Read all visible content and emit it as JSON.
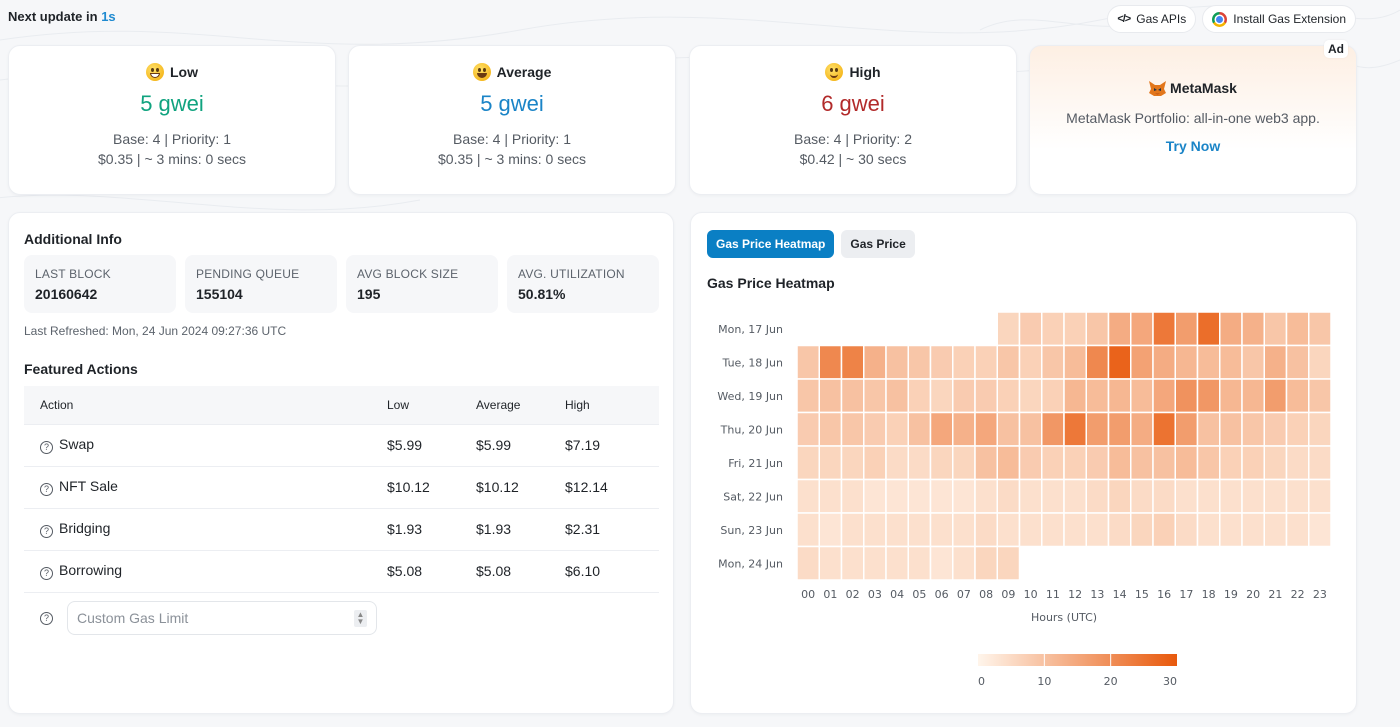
{
  "status": {
    "prefix": "Next update in",
    "countdown": "1s"
  },
  "top_actions": {
    "gas_apis": "Gas APIs",
    "install_extension": "Install Gas Extension"
  },
  "gas_cards": [
    {
      "label": "Low",
      "gwei": "5 gwei",
      "base_priority": "Base: 4 | Priority: 1",
      "cost_time": "$0.35 | ~ 3 mins: 0 secs",
      "color": "#10a37f",
      "icon": "grinning-face-icon"
    },
    {
      "label": "Average",
      "gwei": "5 gwei",
      "base_priority": "Base: 4 | Priority: 1",
      "cost_time": "$0.35 | ~ 3 mins: 0 secs",
      "color": "#1a84c7",
      "icon": "smiling-face-open-mouth-icon"
    },
    {
      "label": "High",
      "gwei": "6 gwei",
      "base_priority": "Base: 4 | Priority: 2",
      "cost_time": "$0.42 | ~ 30 secs",
      "color": "#b22a2a",
      "icon": "slightly-smiling-face-icon"
    }
  ],
  "ad": {
    "badge": "Ad",
    "brand": "MetaMask",
    "description": "MetaMask Portfolio: all-in-one web3 app.",
    "cta": "Try Now"
  },
  "additional_info": {
    "title": "Additional Info",
    "stats": [
      {
        "label": "LAST BLOCK",
        "value": "20160642"
      },
      {
        "label": "PENDING QUEUE",
        "value": "155104"
      },
      {
        "label": "AVG BLOCK SIZE",
        "value": "195"
      },
      {
        "label": "AVG. UTILIZATION",
        "value": "50.81%"
      }
    ],
    "last_refreshed": "Last Refreshed: Mon, 24 Jun 2024 09:27:36 UTC"
  },
  "featured_actions": {
    "title": "Featured Actions",
    "columns": [
      "Action",
      "Low",
      "Average",
      "High"
    ],
    "rows": [
      {
        "action": "Swap",
        "low": "$5.99",
        "average": "$5.99",
        "high": "$7.19"
      },
      {
        "action": "NFT Sale",
        "low": "$10.12",
        "average": "$10.12",
        "high": "$12.14"
      },
      {
        "action": "Bridging",
        "low": "$1.93",
        "average": "$1.93",
        "high": "$2.31"
      },
      {
        "action": "Borrowing",
        "low": "$5.08",
        "average": "$5.08",
        "high": "$6.10"
      }
    ],
    "custom_gas_limit": {
      "placeholder": "Custom Gas Limit",
      "value": ""
    }
  },
  "heatmap_panel": {
    "tabs": [
      {
        "label": "Gas Price Heatmap",
        "active": true
      },
      {
        "label": "Gas Price",
        "active": false
      }
    ],
    "title": "Gas Price Heatmap"
  },
  "chart_data": {
    "type": "heatmap",
    "title": "Gas Price Heatmap",
    "xlabel": "Hours (UTC)",
    "ylabel": "",
    "x": [
      "00",
      "01",
      "02",
      "03",
      "04",
      "05",
      "06",
      "07",
      "08",
      "09",
      "10",
      "11",
      "12",
      "13",
      "14",
      "15",
      "16",
      "17",
      "18",
      "19",
      "20",
      "21",
      "22",
      "23"
    ],
    "y": [
      "Mon, 17 Jun",
      "Tue, 18 Jun",
      "Wed, 19 Jun",
      "Thu, 20 Jun",
      "Fri, 21 Jun",
      "Sat, 22 Jun",
      "Sun, 23 Jun",
      "Mon, 24 Jun"
    ],
    "values": [
      [
        null,
        null,
        null,
        null,
        null,
        null,
        null,
        null,
        null,
        6,
        8,
        7,
        7,
        9,
        14,
        15,
        24,
        17,
        26,
        14,
        13,
        9,
        11,
        9
      ],
      [
        9,
        21,
        22,
        13,
        10,
        9,
        8,
        7,
        7,
        9,
        7,
        9,
        11,
        21,
        28,
        16,
        14,
        12,
        11,
        11,
        9,
        13,
        10,
        6
      ],
      [
        9,
        10,
        10,
        9,
        10,
        7,
        6,
        8,
        8,
        7,
        6,
        7,
        12,
        11,
        12,
        11,
        15,
        19,
        18,
        12,
        12,
        17,
        11,
        9
      ],
      [
        8,
        9,
        9,
        8,
        7,
        10,
        15,
        13,
        15,
        10,
        10,
        18,
        24,
        17,
        17,
        14,
        25,
        17,
        10,
        10,
        9,
        8,
        7,
        6
      ],
      [
        6,
        6,
        6,
        7,
        5,
        5,
        6,
        6,
        10,
        11,
        8,
        7,
        7,
        8,
        11,
        10,
        10,
        11,
        9,
        7,
        7,
        6,
        5,
        5
      ],
      [
        4,
        4,
        4,
        3,
        3,
        3,
        3,
        3,
        4,
        5,
        4,
        4,
        4,
        5,
        6,
        5,
        5,
        4,
        4,
        4,
        4,
        4,
        4,
        4
      ],
      [
        4,
        3,
        4,
        4,
        4,
        4,
        4,
        4,
        5,
        4,
        4,
        4,
        4,
        4,
        5,
        6,
        7,
        5,
        4,
        4,
        4,
        4,
        4,
        3
      ],
      [
        5,
        4,
        4,
        4,
        4,
        4,
        3,
        4,
        6,
        6,
        null,
        null,
        null,
        null,
        null,
        null,
        null,
        null,
        null,
        null,
        null,
        null,
        null,
        null
      ]
    ],
    "color_scale": {
      "min": 0,
      "max": 30,
      "low_color": "#fff5eb",
      "high_color": "#e8590c",
      "ticks": [
        0,
        10,
        20,
        30
      ]
    },
    "legend": "bottom-center"
  }
}
